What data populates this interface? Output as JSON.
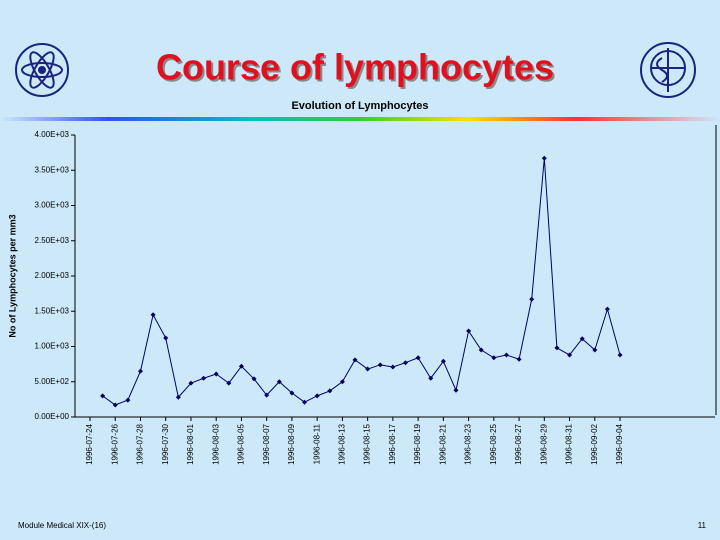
{
  "slide": {
    "title": "Course of lymphocytes",
    "footer_left": "Module Medical XIX-(16)",
    "page_number": "11"
  },
  "chart_data": {
    "type": "line",
    "title": "Evolution of Lymphocytes",
    "y_label": "No of Lymphocytes per mm3",
    "categories": [
      "1996-07-24",
      null,
      "1996-07-26",
      null,
      "1996-07-28",
      null,
      "1996-07-30",
      null,
      "1996-08-01",
      null,
      "1996-08-03",
      null,
      "1996-08-05",
      null,
      "1996-08-07",
      null,
      "1996-08-09",
      null,
      "1996-08-11",
      null,
      "1996-08-13",
      null,
      "1996-08-15",
      null,
      "1996-08-17",
      null,
      "1996-08-19",
      null,
      "1996-08-21",
      null,
      "1996-08-23",
      null,
      "1996-08-25",
      null,
      "1996-08-27",
      null,
      "1996-08-29",
      null,
      "1996-08-31",
      null,
      "1996-09-02",
      null,
      "1996-09-04"
    ],
    "series": [
      {
        "name": "Lymphocytes",
        "color": "#000066",
        "values": [
          null,
          300,
          170,
          240,
          650,
          1450,
          1120,
          280,
          480,
          550,
          610,
          480,
          720,
          540,
          310,
          500,
          340,
          210,
          300,
          370,
          500,
          810,
          680,
          740,
          710,
          770,
          840,
          550,
          790,
          380,
          1220,
          950,
          840,
          880,
          820,
          1670,
          3670,
          980,
          880,
          1110,
          950,
          1530,
          880
        ]
      }
    ],
    "ylim": [
      0,
      4000
    ],
    "yticks": [
      {
        "value": 0,
        "label": "0.00E+00"
      },
      {
        "value": 500,
        "label": "5.00E+02"
      },
      {
        "value": 1000,
        "label": "1.00E+03"
      },
      {
        "value": 1500,
        "label": "1.50E+03"
      },
      {
        "value": 2000,
        "label": "2.00E+03"
      },
      {
        "value": 2500,
        "label": "2.50E+03"
      },
      {
        "value": 3000,
        "label": "3.00E+03"
      },
      {
        "value": 3500,
        "label": "3.50E+03"
      },
      {
        "value": 4000,
        "label": "4.00E+03"
      }
    ]
  }
}
